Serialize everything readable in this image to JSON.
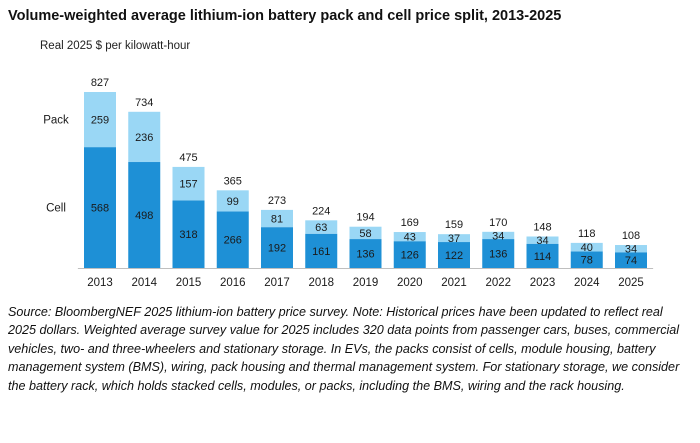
{
  "chart_data": {
    "type": "bar",
    "stacked": true,
    "title": "Volume-weighted average lithium-ion battery pack and cell price split, 2013-2025",
    "unit_label": "Real 2025 $ per kilowatt-hour",
    "categories": [
      "2013",
      "2014",
      "2015",
      "2016",
      "2017",
      "2018",
      "2019",
      "2020",
      "2021",
      "2022",
      "2023",
      "2024",
      "2025"
    ],
    "series": [
      {
        "name": "Cell",
        "color": "#1e90d6",
        "values": [
          568,
          498,
          318,
          266,
          192,
          161,
          136,
          126,
          122,
          136,
          114,
          78,
          74
        ]
      },
      {
        "name": "Pack",
        "color": "#9ad7f5",
        "values": [
          259,
          236,
          157,
          99,
          81,
          63,
          58,
          43,
          37,
          34,
          34,
          40,
          34
        ]
      }
    ],
    "totals": [
      827,
      734,
      475,
      365,
      273,
      224,
      194,
      169,
      159,
      170,
      148,
      118,
      108
    ],
    "ylim": [
      0,
      827
    ],
    "grid": false,
    "legend": "inline-left"
  },
  "source_note": "Source: BloombergNEF 2025 lithium-ion battery price survey. Note: Historical prices have been updated to reflect real 2025 dollars. Weighted average survey value for 2025 includes 320 data points from passenger cars, buses, commercial vehicles, two- and three-wheelers and stationary storage.  In EVs, the packs consist of cells, module housing, battery management system (BMS), wiring, pack housing and thermal management system. For stationary storage, we consider the battery rack, which holds stacked cells, modules, or packs, including the BMS, wiring and the rack housing."
}
